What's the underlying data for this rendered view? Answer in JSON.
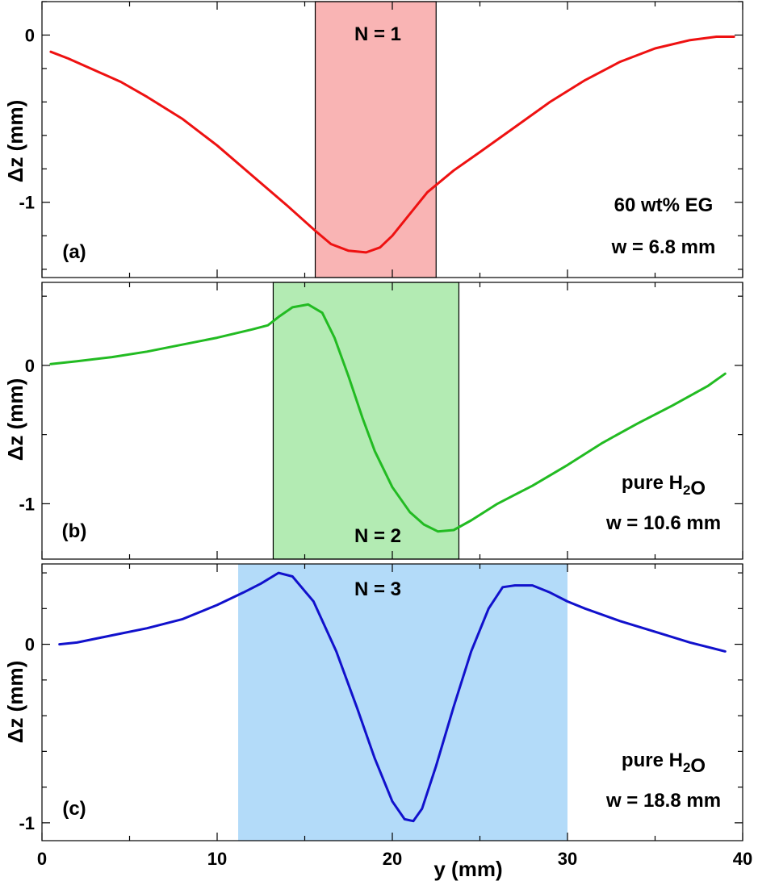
{
  "chart_data": {
    "type": "line",
    "shared_x": {
      "label": "y (mm)",
      "lim": [
        0,
        40
      ],
      "ticks": [
        0,
        10,
        20,
        30,
        40
      ],
      "tick_labels": [
        "0",
        "10",
        "20",
        "30",
        "40"
      ]
    },
    "panels": [
      {
        "id": "a",
        "panel_label": "(a)",
        "ylabel": "Δz (mm)",
        "ylim": [
          -1.45,
          0.2
        ],
        "yticks": [
          0,
          -1
        ],
        "ytick_labels": [
          "0",
          "-1"
        ],
        "minor_yticks": [
          0.2,
          -0.2,
          -0.4,
          -0.6,
          -0.8,
          -1.2,
          -1.4
        ],
        "band": {
          "label": "N = 1",
          "x_range": [
            15.6,
            22.5
          ],
          "color": "#f9b4b4",
          "outlined": true
        },
        "annotations": [
          "60 wt% EG",
          "w = 6.8 mm"
        ],
        "series": [
          {
            "name": "N = 1",
            "color": "#ee1111",
            "x": [
              0.5,
              1.5,
              3,
              4.5,
              6,
              8,
              10,
              12,
              14,
              15.6,
              16.5,
              17.5,
              18.5,
              19.3,
              20,
              21,
              22,
              23.5,
              25,
              27,
              29,
              31,
              33,
              35,
              37,
              38.5,
              39.5
            ],
            "y": [
              -0.1,
              -0.14,
              -0.21,
              -0.28,
              -0.37,
              -0.5,
              -0.66,
              -0.84,
              -1.02,
              -1.17,
              -1.25,
              -1.29,
              -1.3,
              -1.27,
              -1.2,
              -1.07,
              -0.94,
              -0.81,
              -0.7,
              -0.55,
              -0.4,
              -0.27,
              -0.16,
              -0.08,
              -0.03,
              -0.01,
              -0.01
            ]
          }
        ]
      },
      {
        "id": "b",
        "panel_label": "(b)",
        "ylabel": "Δz (mm)",
        "ylim": [
          -1.4,
          0.6
        ],
        "yticks": [
          0,
          -1
        ],
        "ytick_labels": [
          "0",
          "-1"
        ],
        "minor_yticks": [
          0.5,
          -0.5
        ],
        "band": {
          "label": "N = 2",
          "x_range": [
            13.2,
            23.8
          ],
          "color": "#b3ebb3",
          "outlined": true
        },
        "annotations": [
          "pure H₂O",
          "w = 10.6 mm"
        ],
        "series": [
          {
            "name": "N = 2",
            "color": "#22bb22",
            "x": [
              0.5,
              2,
              4,
              6,
              8,
              10,
              12,
              12.9,
              13.5,
              14.3,
              15.2,
              16,
              16.7,
              17.5,
              18.3,
              19,
              20,
              21,
              21.8,
              22.6,
              23.5,
              24.5,
              26,
              28,
              30,
              32,
              34,
              36,
              38,
              39
            ],
            "y": [
              0.01,
              0.03,
              0.06,
              0.1,
              0.15,
              0.2,
              0.26,
              0.29,
              0.35,
              0.42,
              0.44,
              0.38,
              0.2,
              -0.08,
              -0.38,
              -0.62,
              -0.88,
              -1.06,
              -1.15,
              -1.2,
              -1.19,
              -1.12,
              -1.0,
              -0.87,
              -0.72,
              -0.56,
              -0.42,
              -0.29,
              -0.15,
              -0.06
            ]
          }
        ]
      },
      {
        "id": "c",
        "panel_label": "(c)",
        "ylabel": "Δz (mm)",
        "ylim": [
          -1.1,
          0.45
        ],
        "yticks": [
          0,
          -1
        ],
        "ytick_labels": [
          "0",
          "-1"
        ],
        "minor_yticks": [
          0.4,
          0.2,
          -0.2,
          -0.4,
          -0.6,
          -0.8
        ],
        "band": {
          "label": "N = 3",
          "x_range": [
            11.2,
            30.0
          ],
          "color": "#b3dbf9",
          "outlined": false
        },
        "annotations": [
          "pure H₂O",
          "w = 18.8 mm"
        ],
        "series": [
          {
            "name": "N = 3",
            "color": "#1111cc",
            "x": [
              1,
              2,
              4,
              6,
              8,
              10,
              11.5,
              12.5,
              13.5,
              14.3,
              15.5,
              16.8,
              18,
              19,
              20,
              20.7,
              21.2,
              21.7,
              22.5,
              23.5,
              24.5,
              25.5,
              26.3,
              27,
              28,
              29,
              30,
              31,
              33,
              35,
              37,
              39
            ],
            "y": [
              0.0,
              0.01,
              0.05,
              0.09,
              0.14,
              0.22,
              0.29,
              0.34,
              0.4,
              0.38,
              0.24,
              -0.04,
              -0.36,
              -0.64,
              -0.88,
              -0.98,
              -0.99,
              -0.92,
              -0.68,
              -0.35,
              -0.04,
              0.2,
              0.32,
              0.33,
              0.33,
              0.29,
              0.24,
              0.2,
              0.13,
              0.07,
              0.01,
              -0.04
            ]
          }
        ]
      }
    ]
  }
}
